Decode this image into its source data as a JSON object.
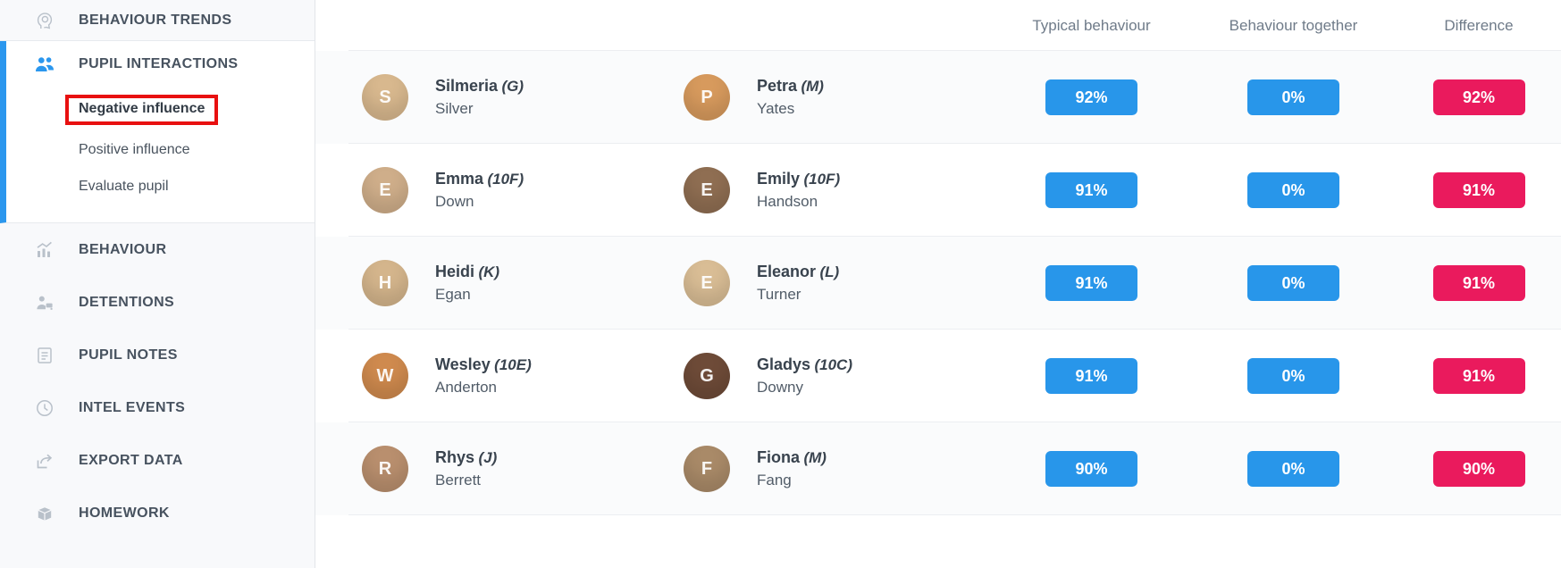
{
  "sidebar": {
    "items": [
      {
        "id": "behaviour-trends",
        "label": "BEHAVIOUR TRENDS",
        "icon": "head-profile-icon",
        "active": false
      },
      {
        "id": "pupil-interactions",
        "label": "PUPIL INTERACTIONS",
        "icon": "people-icon",
        "active": true,
        "children": [
          {
            "id": "negative-influence",
            "label": "Negative influence",
            "selected": true,
            "highlight_box": true
          },
          {
            "id": "positive-influence",
            "label": "Positive influence",
            "selected": false,
            "highlight_box": false
          },
          {
            "id": "evaluate-pupil",
            "label": "Evaluate pupil",
            "selected": false,
            "highlight_box": false
          }
        ]
      },
      {
        "id": "behaviour",
        "label": "BEHAVIOUR",
        "icon": "bar-chart-icon",
        "active": false
      },
      {
        "id": "detentions",
        "label": "DETENTIONS",
        "icon": "person-desk-icon",
        "active": false
      },
      {
        "id": "pupil-notes",
        "label": "PUPIL NOTES",
        "icon": "document-icon",
        "active": false
      },
      {
        "id": "intel-events",
        "label": "INTEL EVENTS",
        "icon": "clock-icon",
        "active": false
      },
      {
        "id": "export-data",
        "label": "EXPORT DATA",
        "icon": "export-icon",
        "active": false
      },
      {
        "id": "homework",
        "label": "HOMEWORK",
        "icon": "bag-icon",
        "active": false
      }
    ]
  },
  "table": {
    "columns": [
      "Typical behaviour",
      "Behaviour together",
      "Difference"
    ],
    "rows": [
      {
        "pupil1": {
          "first": "Silmeria",
          "class_code": "(G)",
          "last": "Silver",
          "avatar_color": "#d8b88e"
        },
        "pupil2": {
          "first": "Petra",
          "class_code": "(M)",
          "last": "Yates",
          "avatar_color": "#d79a5d"
        },
        "typical": "92%",
        "together": "0%",
        "difference": "92%"
      },
      {
        "pupil1": {
          "first": "Emma",
          "class_code": "(10F)",
          "last": "Down",
          "avatar_color": "#cfae8a"
        },
        "pupil2": {
          "first": "Emily",
          "class_code": "(10F)",
          "last": "Handson",
          "avatar_color": "#8f6e52"
        },
        "typical": "91%",
        "together": "0%",
        "difference": "91%"
      },
      {
        "pupil1": {
          "first": "Heidi",
          "class_code": "(K)",
          "last": "Egan",
          "avatar_color": "#d4b58c"
        },
        "pupil2": {
          "first": "Eleanor",
          "class_code": "(L)",
          "last": "Turner",
          "avatar_color": "#d9bd95"
        },
        "typical": "91%",
        "together": "0%",
        "difference": "91%"
      },
      {
        "pupil1": {
          "first": "Wesley",
          "class_code": "(10E)",
          "last": "Anderton",
          "avatar_color": "#cf8a4e"
        },
        "pupil2": {
          "first": "Gladys",
          "class_code": "(10C)",
          "last": "Downy",
          "avatar_color": "#6e4b38"
        },
        "typical": "91%",
        "together": "0%",
        "difference": "91%"
      },
      {
        "pupil1": {
          "first": "Rhys",
          "class_code": "(J)",
          "last": "Berrett",
          "avatar_color": "#b98f6e"
        },
        "pupil2": {
          "first": "Fiona",
          "class_code": "(M)",
          "last": "Fang",
          "avatar_color": "#a98a68"
        },
        "typical": "90%",
        "together": "0%",
        "difference": "90%"
      }
    ]
  },
  "colors": {
    "badge_blue": "#2896ea",
    "badge_pink": "#ea1a5d",
    "active_blue": "#2b97ee",
    "highlight_red": "#e81010"
  }
}
